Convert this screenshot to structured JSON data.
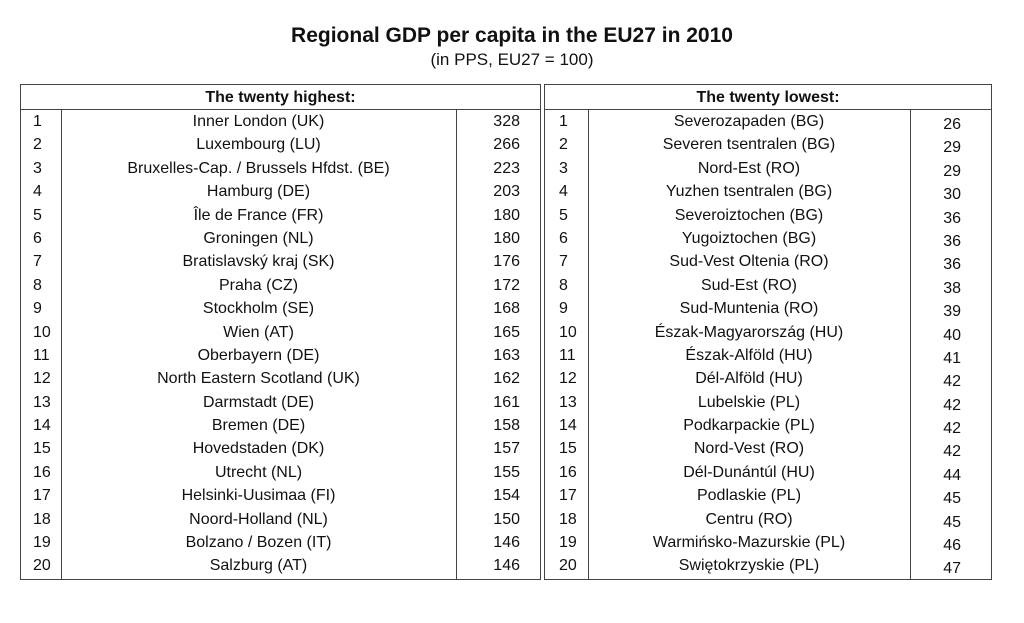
{
  "title": "Regional GDP per capita in the EU27 in 2010",
  "subtitle": "(in PPS, EU27 = 100)",
  "highest": {
    "heading": "The twenty highest:",
    "rows": [
      {
        "rank": "1",
        "region": "Inner London (UK)",
        "value": "328"
      },
      {
        "rank": "2",
        "region": "Luxembourg (LU)",
        "value": "266"
      },
      {
        "rank": "3",
        "region": "Bruxelles-Cap. / Brussels Hfdst. (BE)",
        "value": "223"
      },
      {
        "rank": "4",
        "region": "Hamburg (DE)",
        "value": "203"
      },
      {
        "rank": "5",
        "region": "Île de France (FR)",
        "value": "180"
      },
      {
        "rank": "6",
        "region": "Groningen (NL)",
        "value": "180"
      },
      {
        "rank": "7",
        "region": "Bratislavský kraj (SK)",
        "value": "176"
      },
      {
        "rank": "8",
        "region": "Praha (CZ)",
        "value": "172"
      },
      {
        "rank": "9",
        "region": "Stockholm (SE)",
        "value": "168"
      },
      {
        "rank": "10",
        "region": "Wien (AT)",
        "value": "165"
      },
      {
        "rank": "11",
        "region": "Oberbayern (DE)",
        "value": "163"
      },
      {
        "rank": "12",
        "region": "North Eastern Scotland (UK)",
        "value": "162"
      },
      {
        "rank": "13",
        "region": "Darmstadt (DE)",
        "value": "161"
      },
      {
        "rank": "14",
        "region": "Bremen (DE)",
        "value": "158"
      },
      {
        "rank": "15",
        "region": "Hovedstaden (DK)",
        "value": "157"
      },
      {
        "rank": "16",
        "region": "Utrecht (NL)",
        "value": "155"
      },
      {
        "rank": "17",
        "region": "Helsinki-Uusimaa (FI)",
        "value": "154"
      },
      {
        "rank": "18",
        "region": "Noord-Holland (NL)",
        "value": "150"
      },
      {
        "rank": "19",
        "region": "Bolzano / Bozen (IT)",
        "value": "146"
      },
      {
        "rank": "20",
        "region": "Salzburg (AT)",
        "value": "146"
      }
    ]
  },
  "lowest": {
    "heading": "The twenty lowest:",
    "rows": [
      {
        "rank": "1",
        "region": "Severozapaden (BG)",
        "value": "26"
      },
      {
        "rank": "2",
        "region": "Severen tsentralen (BG)",
        "value": "29"
      },
      {
        "rank": "3",
        "region": "Nord-Est (RO)",
        "value": "29"
      },
      {
        "rank": "4",
        "region": "Yuzhen tsentralen (BG)",
        "value": "30"
      },
      {
        "rank": "5",
        "region": "Severoiztochen (BG)",
        "value": "36"
      },
      {
        "rank": "6",
        "region": "Yugoiztochen (BG)",
        "value": "36"
      },
      {
        "rank": "7",
        "region": "Sud-Vest Oltenia (RO)",
        "value": "36"
      },
      {
        "rank": "8",
        "region": "Sud-Est (RO)",
        "value": "38"
      },
      {
        "rank": "9",
        "region": "Sud-Muntenia (RO)",
        "value": "39"
      },
      {
        "rank": "10",
        "region": "Észak-Magyarország (HU)",
        "value": "40"
      },
      {
        "rank": "11",
        "region": "Észak-Alföld (HU)",
        "value": "41"
      },
      {
        "rank": "12",
        "region": "Dél-Alföld (HU)",
        "value": "42"
      },
      {
        "rank": "13",
        "region": "Lubelskie (PL)",
        "value": "42"
      },
      {
        "rank": "14",
        "region": "Podkarpackie (PL)",
        "value": "42"
      },
      {
        "rank": "15",
        "region": "Nord-Vest (RO)",
        "value": "42"
      },
      {
        "rank": "16",
        "region": "Dél-Dunántúl (HU)",
        "value": "44"
      },
      {
        "rank": "17",
        "region": "Podlaskie (PL)",
        "value": "45"
      },
      {
        "rank": "18",
        "region": "Centru (RO)",
        "value": "45"
      },
      {
        "rank": "19",
        "region": "Warmińsko-Mazurskie (PL)",
        "value": "46"
      },
      {
        "rank": "20",
        "region": "Swiętokrzyskie (PL)",
        "value": "47"
      }
    ]
  }
}
